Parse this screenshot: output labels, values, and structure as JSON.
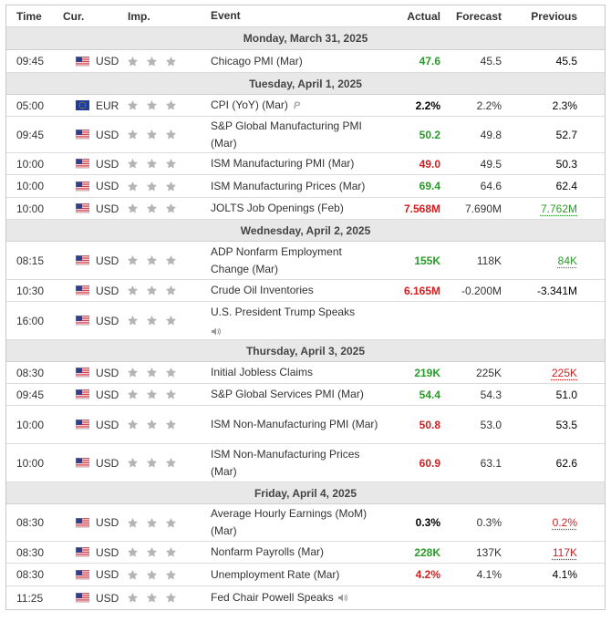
{
  "headers": {
    "time": "Time",
    "currency": "Cur.",
    "importance": "Imp.",
    "event": "Event",
    "actual": "Actual",
    "forecast": "Forecast",
    "previous": "Previous"
  },
  "days": [
    {
      "label": "Monday, March 31, 2025",
      "events": [
        {
          "time": "09:45",
          "currency": "USD",
          "flag": "us-flag-icon",
          "event": "Chicago PMI (Mar)",
          "actual": "47.6",
          "actual_color": "green",
          "forecast": "45.5",
          "previous": "45.5",
          "previous_style": "black"
        }
      ]
    },
    {
      "label": "Tuesday, April 1, 2025",
      "events": [
        {
          "time": "05:00",
          "currency": "EUR",
          "flag": "eu-flag-icon",
          "event": "CPI (YoY) (Mar)",
          "preliminary": "P",
          "actual": "2.2%",
          "actual_color": "black",
          "forecast": "2.2%",
          "previous": "2.3%",
          "previous_style": "black"
        },
        {
          "time": "09:45",
          "currency": "USD",
          "flag": "us-flag-icon",
          "event": "S&P Global Manufacturing PMI (Mar)",
          "actual": "50.2",
          "actual_color": "green",
          "forecast": "49.8",
          "previous": "52.7",
          "previous_style": "black"
        },
        {
          "time": "10:00",
          "currency": "USD",
          "flag": "us-flag-icon",
          "event": "ISM Manufacturing PMI (Mar)",
          "actual": "49.0",
          "actual_color": "red",
          "forecast": "49.5",
          "previous": "50.3",
          "previous_style": "black"
        },
        {
          "time": "10:00",
          "currency": "USD",
          "flag": "us-flag-icon",
          "event": "ISM Manufacturing Prices (Mar)",
          "actual": "69.4",
          "actual_color": "green",
          "forecast": "64.6",
          "previous": "62.4",
          "previous_style": "black"
        },
        {
          "time": "10:00",
          "currency": "USD",
          "flag": "us-flag-icon",
          "event": "JOLTS Job Openings (Feb)",
          "actual": "7.568M",
          "actual_color": "red",
          "forecast": "7.690M",
          "previous": "7.762M",
          "previous_style": "ul-green"
        }
      ]
    },
    {
      "label": "Wednesday, April 2, 2025",
      "events": [
        {
          "time": "08:15",
          "currency": "USD",
          "flag": "us-flag-icon",
          "event": "ADP Nonfarm Employment Change (Mar)",
          "actual": "155K",
          "actual_color": "green",
          "forecast": "118K",
          "previous": "84K",
          "previous_style": "ul-green"
        },
        {
          "time": "10:30",
          "currency": "USD",
          "flag": "us-flag-icon",
          "event": "Crude Oil Inventories",
          "actual": "6.165M",
          "actual_color": "red",
          "forecast": "-0.200M",
          "previous": "-3.341M",
          "previous_style": "black"
        },
        {
          "time": "16:00",
          "currency": "USD",
          "flag": "us-flag-icon",
          "event": "U.S. President Trump Speaks",
          "speech_below": true,
          "actual": "",
          "actual_color": "black",
          "forecast": "",
          "previous": "",
          "previous_style": "black"
        }
      ]
    },
    {
      "label": "Thursday, April 3, 2025",
      "events": [
        {
          "time": "08:30",
          "currency": "USD",
          "flag": "us-flag-icon",
          "event": "Initial Jobless Claims",
          "actual": "219K",
          "actual_color": "green",
          "forecast": "225K",
          "previous": "225K",
          "previous_style": "ul-red"
        },
        {
          "time": "09:45",
          "currency": "USD",
          "flag": "us-flag-icon",
          "event": "S&P Global Services PMI (Mar)",
          "actual": "54.4",
          "actual_color": "green",
          "forecast": "54.3",
          "previous": "51.0",
          "previous_style": "black"
        },
        {
          "time": "10:00",
          "currency": "USD",
          "flag": "us-flag-icon",
          "event": "ISM Non-Manufacturing PMI (Mar)",
          "actual": "50.8",
          "actual_color": "red",
          "forecast": "53.0",
          "previous": "53.5",
          "previous_style": "black"
        },
        {
          "time": "10:00",
          "currency": "USD",
          "flag": "us-flag-icon",
          "event": "ISM Non-Manufacturing Prices (Mar)",
          "actual": "60.9",
          "actual_color": "red",
          "forecast": "63.1",
          "previous": "62.6",
          "previous_style": "black"
        }
      ]
    },
    {
      "label": "Friday, April 4, 2025",
      "events": [
        {
          "time": "08:30",
          "currency": "USD",
          "flag": "us-flag-icon",
          "event": "Average Hourly Earnings (MoM) (Mar)",
          "actual": "0.3%",
          "actual_color": "black",
          "forecast": "0.3%",
          "previous": "0.2%",
          "previous_style": "ul-red"
        },
        {
          "time": "08:30",
          "currency": "USD",
          "flag": "us-flag-icon",
          "event": "Nonfarm Payrolls (Mar)",
          "actual": "228K",
          "actual_color": "green",
          "forecast": "137K",
          "previous": "117K",
          "previous_style": "ul-red"
        },
        {
          "time": "08:30",
          "currency": "USD",
          "flag": "us-flag-icon",
          "event": "Unemployment Rate (Mar)",
          "actual": "4.2%",
          "actual_color": "red",
          "forecast": "4.1%",
          "previous": "4.1%",
          "previous_style": "black"
        },
        {
          "time": "11:25",
          "currency": "USD",
          "flag": "us-flag-icon",
          "event": "Fed Chair Powell Speaks",
          "speech_inline": true,
          "actual": "",
          "actual_color": "black",
          "forecast": "",
          "previous": "",
          "previous_style": "black"
        }
      ]
    }
  ],
  "importance_stars": 3,
  "colors": {
    "positive": "#2a9a2a",
    "negative": "#d21e1e",
    "day_header_bg": "#e8e8e8",
    "star": "#b5b5b5"
  }
}
